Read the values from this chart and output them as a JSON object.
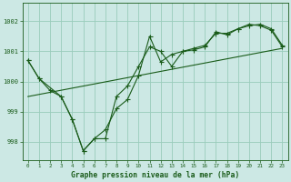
{
  "title": "Graphe pression niveau de la mer (hPa)",
  "bg_color": "#cce8e4",
  "grid_color": "#99ccbb",
  "line_color": "#1a5c1a",
  "xlim": [
    -0.5,
    23.5
  ],
  "ylim": [
    997.4,
    1002.6
  ],
  "yticks": [
    998,
    999,
    1000,
    1001,
    1002
  ],
  "xticks": [
    0,
    1,
    2,
    3,
    4,
    5,
    6,
    7,
    8,
    9,
    10,
    11,
    12,
    13,
    14,
    15,
    16,
    17,
    18,
    19,
    20,
    21,
    22,
    23
  ],
  "trend_x": [
    0,
    23
  ],
  "trend_y": [
    999.5,
    1001.1
  ],
  "series1_x": [
    0,
    1,
    3,
    4,
    5,
    6,
    7,
    8,
    9,
    10,
    11,
    12,
    13,
    14,
    15,
    16,
    17,
    18,
    19,
    20,
    21,
    22,
    23
  ],
  "series1_y": [
    1000.7,
    1000.1,
    999.5,
    998.75,
    997.7,
    998.1,
    998.1,
    999.5,
    999.85,
    1000.5,
    1001.15,
    1001.0,
    1000.5,
    1001.0,
    1001.05,
    1001.15,
    1001.65,
    1001.55,
    1001.75,
    1001.9,
    1001.85,
    1001.7,
    1001.15
  ],
  "series2_x": [
    0,
    1,
    2,
    3,
    4,
    5,
    6,
    7,
    8,
    9,
    10,
    11,
    12,
    13,
    14,
    15,
    16,
    17,
    18,
    19,
    20,
    21,
    22,
    23
  ],
  "series2_y": [
    1000.7,
    1000.1,
    999.7,
    999.5,
    998.75,
    997.7,
    998.1,
    998.4,
    999.1,
    999.4,
    1000.2,
    1001.5,
    1000.65,
    1000.9,
    1001.0,
    1001.1,
    1001.2,
    1001.6,
    1001.6,
    1001.75,
    1001.85,
    1001.9,
    1001.75,
    1001.2
  ]
}
